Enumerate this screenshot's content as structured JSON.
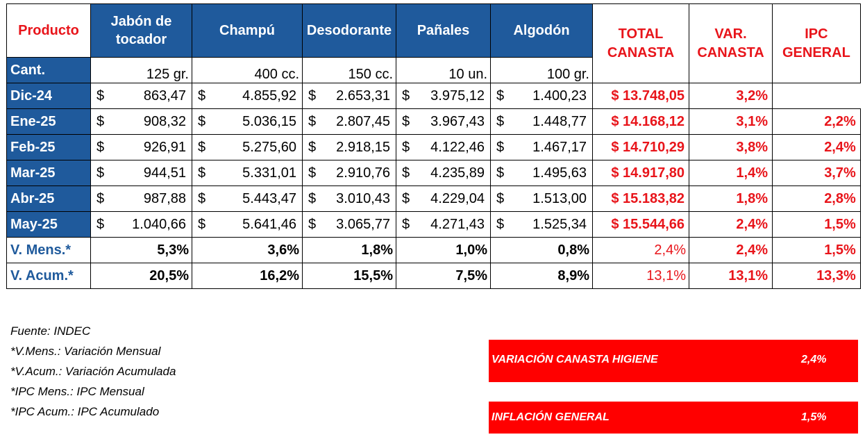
{
  "header": {
    "product": "Producto",
    "columns": [
      "Jabón de tocador",
      "Champú",
      "Desodorante",
      "Pañales",
      "Algodón"
    ],
    "total": "TOTAL CANASTA",
    "var": "VAR. CANASTA",
    "ipc": "IPC GENERAL"
  },
  "cant": {
    "label": "Cant.",
    "units": [
      "125 gr.",
      "400 cc.",
      "150 cc.",
      "10 un.",
      "100 gr."
    ]
  },
  "currency_symbol": "$",
  "rows": [
    {
      "month": "Dic-24",
      "values": [
        "863,47",
        "4.855,92",
        "2.653,31",
        "3.975,12",
        "1.400,23"
      ],
      "total": "$ 13.748,05",
      "var": "3,2%",
      "ipc": ""
    },
    {
      "month": "Ene-25",
      "values": [
        "908,32",
        "5.036,15",
        "2.807,45",
        "3.967,43",
        "1.448,77"
      ],
      "total": "$ 14.168,12",
      "var": "3,1%",
      "ipc": "2,2%"
    },
    {
      "month": "Feb-25",
      "values": [
        "926,91",
        "5.275,60",
        "2.918,15",
        "4.122,46",
        "1.467,17"
      ],
      "total": "$ 14.710,29",
      "var": "3,8%",
      "ipc": "2,4%"
    },
    {
      "month": "Mar-25",
      "values": [
        "944,51",
        "5.331,01",
        "2.910,76",
        "4.235,89",
        "1.495,63"
      ],
      "total": "$ 14.917,80",
      "var": "1,4%",
      "ipc": "3,7%"
    },
    {
      "month": "Abr-25",
      "values": [
        "987,88",
        "5.443,47",
        "3.010,43",
        "4.229,04",
        "1.513,00"
      ],
      "total": "$ 15.183,82",
      "var": "1,8%",
      "ipc": "2,8%"
    },
    {
      "month": "May-25",
      "values": [
        "1.040,66",
        "5.641,46",
        "3.065,77",
        "4.271,43",
        "1.525,34"
      ],
      "total": "$ 15.544,66",
      "var": "2,4%",
      "ipc": "1,5%"
    }
  ],
  "vmens": {
    "label": "V. Mens.*",
    "values": [
      "5,3%",
      "3,6%",
      "1,8%",
      "1,0%",
      "0,8%"
    ],
    "total": "2,4%",
    "var": "2,4%",
    "ipc": "1,5%"
  },
  "vacum": {
    "label": "V. Acum.*",
    "values": [
      "20,5%",
      "16,2%",
      "15,5%",
      "7,5%",
      "8,9%"
    ],
    "total": "13,1%",
    "var": "13,1%",
    "ipc": "13,3%"
  },
  "notes": [
    "Fuente: INDEC",
    "*V.Mens.: Variación Mensual",
    "*V.Acum.: Variación Acumulada",
    "*IPC Mens.: IPC Mensual",
    "*IPC Acum.: IPC Acumulado"
  ],
  "summary": [
    {
      "label": "VARIACIÓN CANASTA HIGIENE",
      "value": "2,4%"
    },
    {
      "label": "INFLACIÓN GENERAL",
      "value": "1,5%"
    }
  ],
  "colors": {
    "blue": "#1f5a9c",
    "red": "#e8141a",
    "box_red": "#ff0000"
  }
}
